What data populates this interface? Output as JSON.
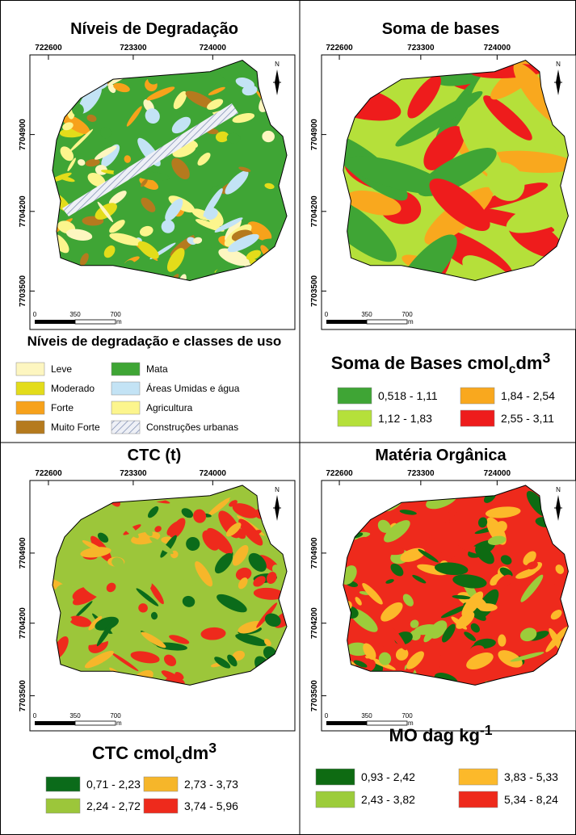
{
  "panels": [
    {
      "title": "Níveis de Degradação",
      "x_ticks": [
        "722600",
        "723300",
        "724000"
      ],
      "y_ticks": [
        "7704900",
        "7704200",
        "7703500"
      ],
      "scale_labels": [
        "0",
        "350",
        "700",
        "m"
      ],
      "north": "N",
      "legend_title": {
        "text": "Níveis de degradação e classes de uso"
      },
      "legend": [
        {
          "label": "Leve",
          "color": "#fdf6c0"
        },
        {
          "label": "Moderado",
          "color": "#e3dc1a"
        },
        {
          "label": "Forte",
          "color": "#f7a21b"
        },
        {
          "label": "Muito Forte",
          "color": "#b57a1e"
        },
        {
          "label": "Mata",
          "color": "#3fa535"
        },
        {
          "label": "Áreas Umidas e água",
          "color": "#c3e3f5"
        },
        {
          "label": "Agricultura",
          "color": "#fcf58d"
        },
        {
          "label": "Construções urbanas",
          "color": "#ffffff",
          "hatch": true
        }
      ]
    },
    {
      "title": "Soma de bases",
      "x_ticks": [
        "722600",
        "723300",
        "724000"
      ],
      "y_ticks": [
        "7704900",
        "7704200",
        "7703500"
      ],
      "scale_labels": [
        "0",
        "350",
        "700",
        "m"
      ],
      "north": "N",
      "legend_title": {
        "text": "Soma de Bases cmol",
        "sub": "c",
        "text2": "dm",
        "sup": "3"
      },
      "legend": [
        {
          "label": "0,518 - 1,11",
          "color": "#3fa535"
        },
        {
          "label": "1,12 - 1,83",
          "color": "#b5e03a"
        },
        {
          "label": "1,84 - 2,54",
          "color": "#f9a81e"
        },
        {
          "label": "2,55 - 3,11",
          "color": "#ee1c1c"
        }
      ]
    },
    {
      "title": "CTC (t)",
      "x_ticks": [
        "722600",
        "723300",
        "724000"
      ],
      "y_ticks": [
        "7704900",
        "7704200",
        "7703500"
      ],
      "scale_labels": [
        "0",
        "350",
        "700",
        "m"
      ],
      "north": "N",
      "legend_title": {
        "text": "CTC cmol",
        "sub": "c",
        "text2": "dm",
        "sup": "3"
      },
      "legend": [
        {
          "label": "0,71 - 2,23",
          "color": "#0b6b1a"
        },
        {
          "label": "2,24 - 2,72",
          "color": "#9cc63a"
        },
        {
          "label": "2,73 - 3,73",
          "color": "#f6b62a"
        },
        {
          "label": "3,74 - 5,96",
          "color": "#ee2a1c"
        }
      ]
    },
    {
      "title": "Matéria Orgânica",
      "x_ticks": [
        "722600",
        "723300",
        "724000"
      ],
      "y_ticks": [
        "7704900",
        "7704200",
        "7703500"
      ],
      "scale_labels": [
        "0",
        "350",
        "700",
        "m"
      ],
      "north": "N",
      "legend_title": {
        "text": "MO dag kg",
        "sup": "-1"
      },
      "legend": [
        {
          "label": "0,93 - 2,42",
          "color": "#0e6b12"
        },
        {
          "label": "2,43 - 3,82",
          "color": "#9ccc3b"
        },
        {
          "label": "3,83 - 5,33",
          "color": "#fcb92a"
        },
        {
          "label": "5,34 - 8,24",
          "color": "#ee2a1c"
        }
      ]
    }
  ]
}
